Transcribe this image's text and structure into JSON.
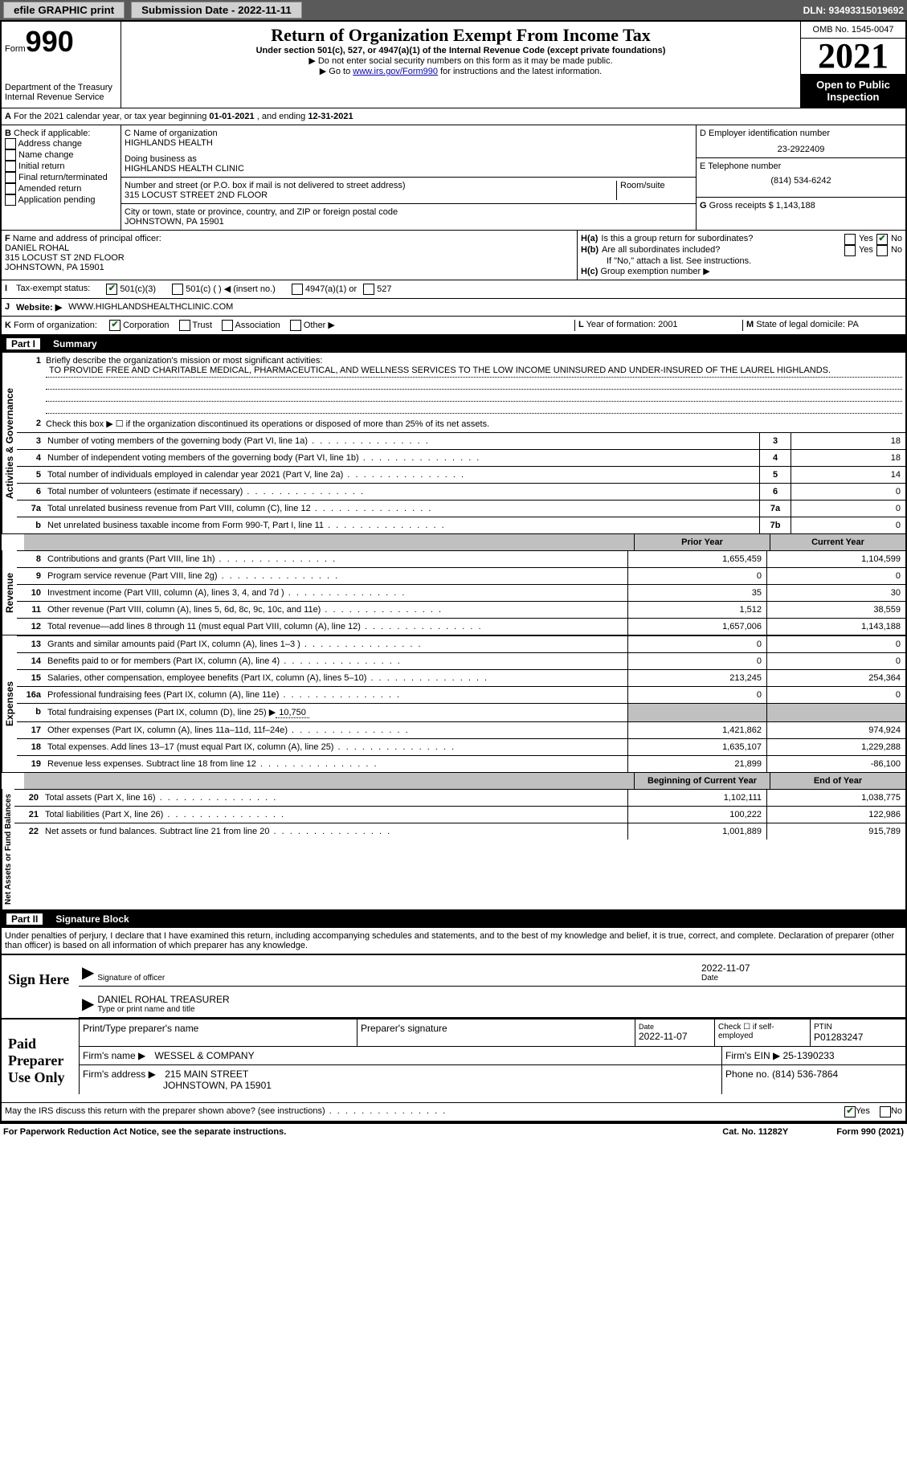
{
  "ui": {
    "top_bar": {
      "efile_label": "efile GRAPHIC print",
      "submission_label": "Submission Date - 2022-11-11",
      "dln_label": "DLN: 93493315019692"
    },
    "header": {
      "form_label": "Form",
      "form_number": "990",
      "dept": "Department of the Treasury",
      "irs": "Internal Revenue Service",
      "title": "Return of Organization Exempt From Income Tax",
      "subtitle": "Under section 501(c), 527, or 4947(a)(1) of the Internal Revenue Code (except private foundations)",
      "instruction1": "▶ Do not enter social security numbers on this form as it may be made public.",
      "instruction2": "▶ Go to ",
      "irs_link": "www.irs.gov/Form990",
      "instruction2b": " for instructions and the latest information.",
      "omb": "OMB No. 1545-0047",
      "year": "2021",
      "inspect": "Open to Public Inspection"
    },
    "section_a": {
      "label_a": "A",
      "text": "For the 2021 calendar year, or tax year beginning ",
      "begin": "01-01-2021",
      "middle": " , and ending ",
      "end": "12-31-2021"
    },
    "section_b": {
      "label": "B",
      "intro": "Check if applicable:",
      "items": [
        "Address change",
        "Name change",
        "Initial return",
        "Final return/terminated",
        "Amended return",
        "Application pending"
      ]
    },
    "section_c": {
      "name_label": "C Name of organization",
      "name": "HIGHLANDS HEALTH",
      "dba_label": "Doing business as",
      "dba": "HIGHLANDS HEALTH CLINIC",
      "street_label": "Number and street (or P.O. box if mail is not delivered to street address)",
      "room_label": "Room/suite",
      "street": "315 LOCUST STREET 2ND FLOOR",
      "city_label": "City or town, state or province, country, and ZIP or foreign postal code",
      "city": "JOHNSTOWN, PA  15901"
    },
    "section_d": {
      "label": "D Employer identification number",
      "ein": "23-2922409",
      "phone_label": "E Telephone number",
      "phone": "(814) 534-6242",
      "gross_label": "G",
      "gross_text": "Gross receipts $",
      "gross": "1,143,188"
    },
    "section_f": {
      "label": "F",
      "text": "Name and address of principal officer:",
      "name": "DANIEL ROHAL",
      "addr1": "315 LOCUST ST 2ND FLOOR",
      "addr2": "JOHNSTOWN, PA  15901"
    },
    "section_h": {
      "ha_label": "H(a)",
      "ha_text": "Is this a group return for subordinates?",
      "hb_label": "H(b)",
      "hb_text": "Are all subordinates included?",
      "hb_note": "If \"No,\" attach a list. See instructions.",
      "hc_label": "H(c)",
      "hc_text": "Group exemption number ▶",
      "yes": "Yes",
      "no": "No"
    },
    "tax_status": {
      "label": "I",
      "text": "Tax-exempt status:",
      "opt1": "501(c)(3)",
      "opt2": "501(c) (   ) ◀ (insert no.)",
      "opt3": "4947(a)(1) or",
      "opt4": "527"
    },
    "website": {
      "label": "J",
      "text": "Website: ▶",
      "url": "WWW.HIGHLANDSHEALTHCLINIC.COM"
    },
    "section_k": {
      "label": "K",
      "text": "Form of organization:",
      "opts": [
        "Corporation",
        "Trust",
        "Association",
        "Other ▶"
      ]
    },
    "section_l": {
      "label": "L",
      "text": "Year of formation:",
      "year": "2001"
    },
    "section_m": {
      "label": "M",
      "text": "State of legal domicile:",
      "state": "PA"
    },
    "part1": {
      "label": "Part I",
      "title": "Summary"
    },
    "summary": {
      "group1_label": "Activities & Governance",
      "line1_num": "1",
      "line1": "Briefly describe the organization's mission or most significant activities:",
      "mission": "TO PROVIDE FREE AND CHARITABLE MEDICAL, PHARMACEUTICAL, AND WELLNESS SERVICES TO THE LOW INCOME UNINSURED AND UNDER-INSURED OF THE LAUREL HIGHLANDS.",
      "line2_num": "2",
      "line2": "Check this box ▶ ☐ if the organization discontinued its operations or disposed of more than 25% of its net assets.",
      "rows_gov": [
        {
          "num": "3",
          "desc": "Number of voting members of the governing body (Part VI, line 1a)",
          "box": "3",
          "val": "18"
        },
        {
          "num": "4",
          "desc": "Number of independent voting members of the governing body (Part VI, line 1b)",
          "box": "4",
          "val": "18"
        },
        {
          "num": "5",
          "desc": "Total number of individuals employed in calendar year 2021 (Part V, line 2a)",
          "box": "5",
          "val": "14"
        },
        {
          "num": "6",
          "desc": "Total number of volunteers (estimate if necessary)",
          "box": "6",
          "val": "0"
        },
        {
          "num": "7a",
          "desc": "Total unrelated business revenue from Part VIII, column (C), line 12",
          "box": "7a",
          "val": "0"
        },
        {
          "num": "b",
          "desc": "Net unrelated business taxable income from Form 990-T, Part I, line 11",
          "box": "7b",
          "val": "0"
        }
      ],
      "col_prior": "Prior Year",
      "col_current": "Current Year",
      "group2_label": "Revenue",
      "rows_rev": [
        {
          "num": "8",
          "desc": "Contributions and grants (Part VIII, line 1h)",
          "prior": "1,655,459",
          "current": "1,104,599"
        },
        {
          "num": "9",
          "desc": "Program service revenue (Part VIII, line 2g)",
          "prior": "0",
          "current": "0"
        },
        {
          "num": "10",
          "desc": "Investment income (Part VIII, column (A), lines 3, 4, and 7d )",
          "prior": "35",
          "current": "30"
        },
        {
          "num": "11",
          "desc": "Other revenue (Part VIII, column (A), lines 5, 6d, 8c, 9c, 10c, and 11e)",
          "prior": "1,512",
          "current": "38,559"
        },
        {
          "num": "12",
          "desc": "Total revenue—add lines 8 through 11 (must equal Part VIII, column (A), line 12)",
          "prior": "1,657,006",
          "current": "1,143,188"
        }
      ],
      "group3_label": "Expenses",
      "rows_exp": [
        {
          "num": "13",
          "desc": "Grants and similar amounts paid (Part IX, column (A), lines 1–3 )",
          "prior": "0",
          "current": "0"
        },
        {
          "num": "14",
          "desc": "Benefits paid to or for members (Part IX, column (A), line 4)",
          "prior": "0",
          "current": "0"
        },
        {
          "num": "15",
          "desc": "Salaries, other compensation, employee benefits (Part IX, column (A), lines 5–10)",
          "prior": "213,245",
          "current": "254,364"
        },
        {
          "num": "16a",
          "desc": "Professional fundraising fees (Part IX, column (A), line 11e)",
          "prior": "0",
          "current": "0"
        }
      ],
      "line16b_num": "b",
      "line16b": "Total fundraising expenses (Part IX, column (D), line 25) ▶",
      "line16b_val": "10,750",
      "rows_exp2": [
        {
          "num": "17",
          "desc": "Other expenses (Part IX, column (A), lines 11a–11d, 11f–24e)",
          "prior": "1,421,862",
          "current": "974,924"
        },
        {
          "num": "18",
          "desc": "Total expenses. Add lines 13–17 (must equal Part IX, column (A), line 25)",
          "prior": "1,635,107",
          "current": "1,229,288"
        },
        {
          "num": "19",
          "desc": "Revenue less expenses. Subtract line 18 from line 12",
          "prior": "21,899",
          "current": "-86,100"
        }
      ],
      "col_begin": "Beginning of Current Year",
      "col_end": "End of Year",
      "group4_label": "Net Assets or Fund Balances",
      "rows_net": [
        {
          "num": "20",
          "desc": "Total assets (Part X, line 16)",
          "prior": "1,102,111",
          "current": "1,038,775"
        },
        {
          "num": "21",
          "desc": "Total liabilities (Part X, line 26)",
          "prior": "100,222",
          "current": "122,986"
        },
        {
          "num": "22",
          "desc": "Net assets or fund balances. Subtract line 21 from line 20",
          "prior": "1,001,889",
          "current": "915,789"
        }
      ]
    },
    "part2": {
      "label": "Part II",
      "title": "Signature Block"
    },
    "declaration": "Under penalties of perjury, I declare that I have examined this return, including accompanying schedules and statements, and to the best of my knowledge and belief, it is true, correct, and complete. Declaration of preparer (other than officer) is based on all information of which preparer has any knowledge.",
    "sign": {
      "label": "Sign Here",
      "sig_label": "Signature of officer",
      "date_label": "Date",
      "date": "2022-11-07",
      "name": "DANIEL ROHAL TREASURER",
      "name_label": "Type or print name and title"
    },
    "preparer": {
      "label": "Paid Preparer Use Only",
      "print_name_label": "Print/Type preparer's name",
      "sig_label": "Preparer's signature",
      "date_label": "Date",
      "date": "2022-11-07",
      "check_label": "Check ☐ if self-employed",
      "ptin_label": "PTIN",
      "ptin": "P01283247",
      "firm_name_label": "Firm's name    ▶",
      "firm_name": "WESSEL & COMPANY",
      "firm_ein_label": "Firm's EIN ▶",
      "firm_ein": "25-1390233",
      "firm_addr_label": "Firm's address ▶",
      "firm_addr1": "215 MAIN STREET",
      "firm_addr2": "JOHNSTOWN, PA  15901",
      "phone_label": "Phone no.",
      "phone": "(814) 536-7864"
    },
    "footer": {
      "discuss": "May the IRS discuss this return with the preparer shown above? (see instructions)",
      "yes": "Yes",
      "no": "No",
      "paperwork": "For Paperwork Reduction Act Notice, see the separate instructions.",
      "cat": "Cat. No. 11282Y",
      "form": "Form",
      "form_num": "990",
      "form_year": "(2021)"
    }
  },
  "style": {
    "colors": {
      "topbar_bg": "#5a5a5a",
      "button_bg": "#d0d0d0",
      "black_bg": "#000000",
      "link": "#0000cc",
      "check_green": "#1a6b1a",
      "shaded": "#c0c0c0"
    }
  }
}
